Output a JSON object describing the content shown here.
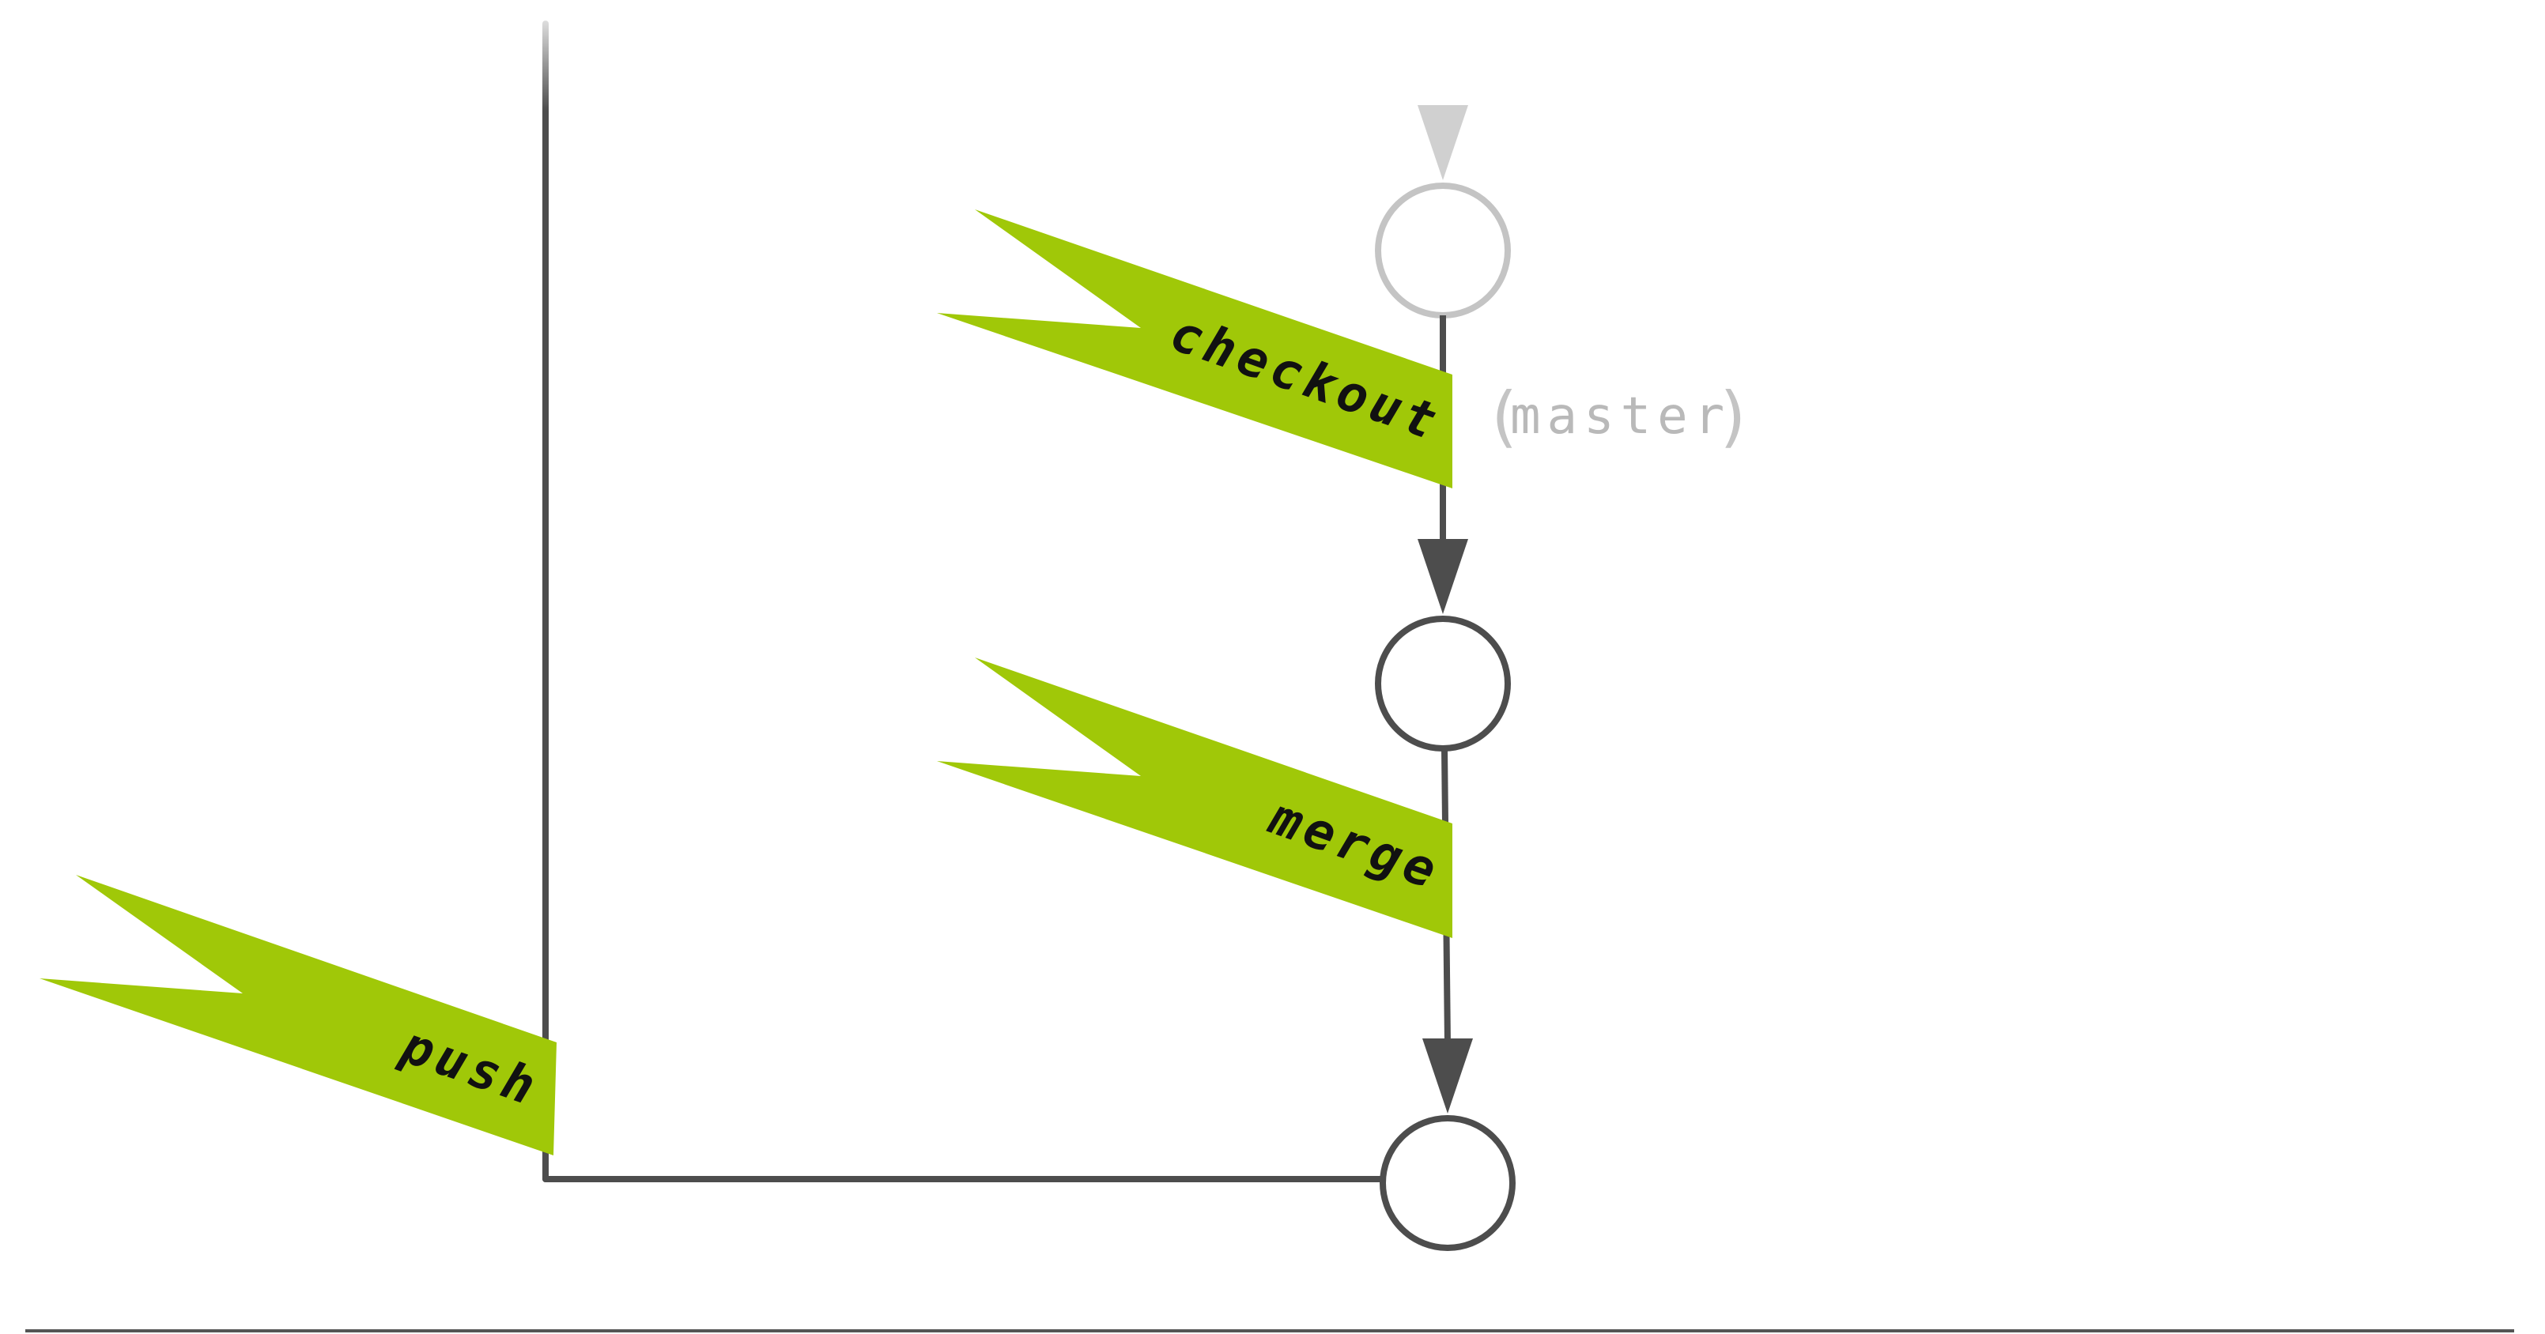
{
  "diagram": {
    "commands": {
      "checkout": "checkout",
      "merge": "merge",
      "push": "push"
    },
    "branch": {
      "name": "master",
      "open_paren": "(",
      "close_paren": ")"
    },
    "nodes": [
      {
        "id": "commit-1",
        "state": "faded"
      },
      {
        "id": "commit-2",
        "state": "active"
      },
      {
        "id": "commit-3",
        "state": "active"
      }
    ],
    "colors": {
      "flag": "#a0c808",
      "line": "#4d4d4d",
      "faded": "#c4c4c4",
      "branch_text": "#b9b9b9",
      "background": "#ffffff"
    }
  }
}
